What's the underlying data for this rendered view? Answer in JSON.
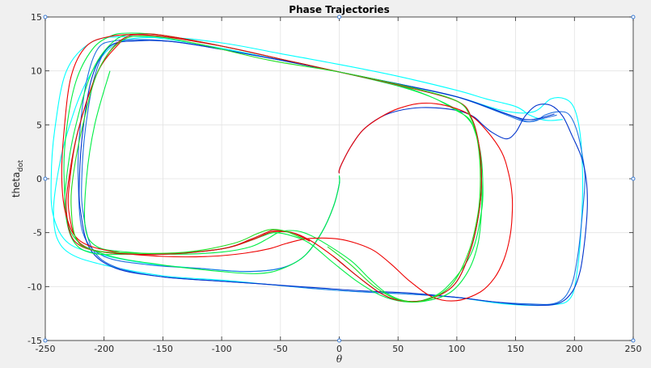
{
  "chart_data": {
    "type": "line",
    "title": "Phase Trajectories",
    "xlabel": "θ",
    "ylabel": "theta",
    "ylabel_subscript": "dot",
    "xlim": [
      -250,
      250
    ],
    "ylim": [
      -15,
      15
    ],
    "xticks": [
      -250,
      -200,
      -150,
      -100,
      -50,
      0,
      50,
      100,
      150,
      200,
      250
    ],
    "yticks": [
      -15,
      -10,
      -5,
      0,
      5,
      10,
      15
    ],
    "xtick_labels": [
      "-250",
      "-200",
      "-150",
      "-100",
      "-50",
      "0",
      "50",
      "100",
      "150",
      "200",
      "250"
    ],
    "ytick_labels": [
      "-15",
      "-10",
      "-5",
      "0",
      "5",
      "10",
      "15"
    ],
    "grid": true,
    "marker_points": [
      [
        -250,
        15
      ],
      [
        0,
        15
      ],
      [
        250,
        15
      ],
      [
        -250,
        0
      ],
      [
        250,
        0
      ],
      [
        -250,
        -15
      ],
      [
        0,
        -15
      ],
      [
        250,
        -15
      ]
    ],
    "series": [
      {
        "color": "#00FFFF",
        "x": [
          0,
          0,
          -5,
          -15,
          -30,
          -50,
          -80,
          -120,
          -160,
          -200,
          -230,
          -243,
          -245,
          -242,
          -232,
          -210,
          -180,
          -150,
          -100,
          -50,
          0,
          50,
          100,
          140,
          165,
          180,
          192,
          200,
          205,
          207,
          206,
          203,
          197,
          180,
          140,
          100,
          60,
          20,
          -20,
          -60,
          -100,
          -150,
          -200,
          -228,
          -240,
          -243,
          -240,
          -232,
          -215,
          -190,
          -150,
          -100,
          -50,
          0,
          50,
          100,
          125,
          150,
          162,
          172,
          180,
          190
        ],
        "y": [
          0.2,
          -0.5,
          -2.6,
          -5,
          -7.2,
          -8.3,
          -8.6,
          -8.3,
          -7.9,
          -7.1,
          -6,
          -3.5,
          0,
          4.5,
          10,
          12.7,
          13.2,
          13,
          12.1,
          11,
          9.9,
          8.8,
          7.6,
          6.3,
          6.2,
          7.4,
          7.4,
          6.5,
          4,
          0,
          -4,
          -8,
          -11,
          -11.7,
          -11.6,
          -11,
          -10.7,
          -10.5,
          -10.2,
          -9.8,
          -9.4,
          -9,
          -8,
          -7,
          -5.5,
          -3,
          0,
          4,
          9,
          12.5,
          13.1,
          12.6,
          11.6,
          10.6,
          9.5,
          8.2,
          7.4,
          6.7,
          5.9,
          5.5,
          5.4,
          5.5
        ]
      },
      {
        "color": "#1E6FE0",
        "x": [
          0,
          0,
          -5,
          -15,
          -30,
          -50,
          -80,
          -120,
          -160,
          -200,
          -218,
          -222,
          -221,
          -215,
          -205,
          -190,
          -165,
          -140,
          -100,
          -50,
          0,
          50,
          100,
          130,
          150,
          160,
          168,
          175,
          185,
          195,
          202,
          207,
          209,
          207,
          203,
          197,
          185,
          160,
          130,
          100,
          60,
          20,
          -20,
          -60,
          -100,
          -150,
          -190,
          -210,
          -218,
          -219,
          -216,
          -208,
          -195,
          -170,
          -140,
          -100,
          -50,
          0,
          50,
          100,
          140,
          158,
          170,
          185
        ],
        "y": [
          0.2,
          -0.5,
          -2.6,
          -5,
          -7.2,
          -8.3,
          -8.6,
          -8.3,
          -8,
          -7.2,
          -5,
          0,
          4,
          9,
          12.1,
          12.8,
          12.9,
          12.7,
          12,
          11,
          9.9,
          8.8,
          7.6,
          6.5,
          5.7,
          5.3,
          5.4,
          5.9,
          6.2,
          6,
          4.5,
          2,
          0,
          -3,
          -7,
          -10,
          -11.5,
          -11.6,
          -11.4,
          -11,
          -10.7,
          -10.5,
          -10.2,
          -9.8,
          -9.5,
          -9.1,
          -8.2,
          -6.5,
          -3,
          0,
          4.5,
          9.5,
          12.3,
          12.8,
          12.7,
          12,
          11,
          9.9,
          8.8,
          7.6,
          6,
          5.3,
          5.5,
          5.9
        ]
      },
      {
        "color": "#0033CC",
        "x": [
          0,
          0,
          3,
          10,
          20,
          35,
          50,
          70,
          90,
          105,
          115,
          122,
          130,
          142,
          150,
          158,
          168,
          180,
          190,
          198,
          206,
          210,
          211,
          209,
          205,
          198,
          185,
          160,
          130,
          100,
          60,
          20,
          -20,
          -60,
          -100,
          -150,
          -190,
          -212,
          -220,
          -221,
          -218,
          -210,
          -195,
          -170,
          -140,
          -100,
          -50,
          0,
          50,
          100,
          140,
          158,
          170,
          183
        ],
        "y": [
          0.5,
          0.8,
          1.6,
          3,
          4.5,
          5.7,
          6.3,
          6.6,
          6.5,
          6.2,
          5.7,
          5,
          4.3,
          3.7,
          4.3,
          5.8,
          6.8,
          6.8,
          5.8,
          4,
          2,
          0,
          -2.5,
          -5.5,
          -8.5,
          -10.5,
          -11.6,
          -11.7,
          -11.4,
          -11,
          -10.6,
          -10.4,
          -10.1,
          -9.8,
          -9.5,
          -9.1,
          -8.3,
          -6.5,
          -3,
          0,
          4.5,
          9.5,
          12.3,
          12.8,
          12.7,
          12,
          11,
          9.9,
          8.8,
          7.6,
          6.1,
          5.5,
          5.6,
          6
        ]
      },
      {
        "color": "#00EE44",
        "x": [
          0,
          0,
          -5,
          -15,
          -30,
          -50,
          -70,
          -100,
          -150,
          -200,
          -228,
          -234,
          -232,
          -224,
          -210,
          -195,
          -180,
          -150,
          -100,
          -50,
          0,
          50,
          90,
          110,
          118,
          121,
          121,
          118,
          110,
          95,
          75,
          55,
          35,
          15,
          -5,
          -25,
          -40,
          -55,
          -65,
          -80,
          -100,
          -140,
          -180,
          -210,
          -226,
          -233,
          -232,
          -225,
          -210,
          -190,
          -170,
          -150,
          -100,
          -50,
          0,
          50,
          80,
          100,
          110,
          115,
          120,
          122,
          121,
          112,
          90,
          70,
          55,
          40,
          25,
          10,
          -15,
          -30,
          -42,
          -52,
          -60,
          -75,
          -100,
          -140,
          -180,
          -206,
          -216,
          -215,
          -208,
          -195
        ],
        "y": [
          0.3,
          -0.5,
          -2.6,
          -5,
          -7.2,
          -8.4,
          -8.8,
          -8.6,
          -8,
          -7,
          -5,
          0,
          4.5,
          9,
          12,
          13.2,
          13.5,
          13.3,
          12.3,
          11.1,
          9.9,
          8.7,
          7,
          5.5,
          3.5,
          0,
          -3,
          -6,
          -8.5,
          -10.5,
          -11.3,
          -11.4,
          -10.8,
          -9.5,
          -7.8,
          -6,
          -5.3,
          -5,
          -5.3,
          -5.9,
          -6.5,
          -6.9,
          -7,
          -6.9,
          -5.8,
          -3,
          0,
          4.5,
          10,
          12.9,
          13.4,
          13.3,
          12.3,
          11.1,
          9.9,
          8.6,
          7.5,
          6.3,
          5.6,
          4.5,
          2.5,
          0,
          -3,
          -7,
          -10.2,
          -11.3,
          -11.3,
          -10.6,
          -9.2,
          -7.6,
          -5.8,
          -5,
          -4.8,
          -5,
          -5.5,
          -6.3,
          -6.8,
          -7,
          -6.8,
          -6.3,
          -4.5,
          0,
          5,
          10
        ]
      },
      {
        "color": "#EE0000",
        "x": [
          0,
          0,
          3,
          10,
          20,
          35,
          50,
          70,
          90,
          110,
          125,
          138,
          144,
          147,
          147,
          145,
          140,
          132,
          120,
          100,
          80,
          60,
          45,
          30,
          15,
          0,
          -15,
          -30,
          -45,
          -60,
          -80,
          -110,
          -150,
          -190,
          -220,
          -232,
          -236,
          -234,
          -228,
          -215,
          -195,
          -170,
          -150,
          -100,
          -50,
          0,
          50,
          100,
          113,
          119,
          121,
          119,
          112,
          98,
          75,
          52,
          35,
          15,
          -5,
          -25,
          -40,
          -55,
          -62,
          -75,
          -100,
          -150,
          -200,
          -222,
          -230,
          -229,
          -222,
          -205,
          -185
        ],
        "y": [
          0.5,
          0.8,
          1.6,
          3,
          4.5,
          5.7,
          6.5,
          7,
          6.8,
          6,
          4.5,
          2.5,
          0.5,
          -1.5,
          -3.5,
          -5.5,
          -7.5,
          -9.2,
          -10.5,
          -11.3,
          -11,
          -9.5,
          -8,
          -6.7,
          -6,
          -5.6,
          -5.5,
          -5.6,
          -6,
          -6.5,
          -6.9,
          -7.2,
          -7.2,
          -6.8,
          -5.8,
          -3.5,
          0,
          4.5,
          9.5,
          12.3,
          13.2,
          13.4,
          13.3,
          12.3,
          11.1,
          9.9,
          8.7,
          7.2,
          5.5,
          3,
          0,
          -3,
          -6.5,
          -9.8,
          -11.2,
          -11.3,
          -10.6,
          -9,
          -7.2,
          -5.7,
          -5,
          -4.9,
          -5.1,
          -5.7,
          -6.5,
          -7,
          -6.8,
          -5.8,
          -3,
          0,
          4.5,
          10,
          12.8
        ]
      },
      {
        "color": "#CC1111",
        "x": [
          -25,
          -40,
          -55,
          -60,
          -75,
          -100,
          -150,
          -200,
          -225,
          -232,
          -230,
          -222,
          -205,
          -185,
          -160,
          -100,
          -50,
          0,
          50,
          100,
          113,
          119,
          121,
          119,
          112,
          98,
          75,
          52,
          35,
          15,
          -5
        ],
        "y": [
          -5.8,
          -5,
          -4.8,
          -4.9,
          -5.6,
          -6.5,
          -7,
          -6.8,
          -5.8,
          -3,
          0,
          4.5,
          10,
          12.9,
          13.3,
          12.3,
          11.1,
          9.9,
          8.7,
          7.2,
          5.5,
          3,
          0,
          -3,
          -6.5,
          -9.8,
          -11.2,
          -11.3,
          -10.6,
          -9,
          -7.2
        ]
      },
      {
        "color": "#22DD22",
        "x": [
          -30,
          -45,
          -58,
          -70,
          -90,
          -130,
          -175,
          -210,
          -224,
          -228,
          -226,
          -218,
          -205,
          -185,
          -160,
          -120,
          -60,
          0,
          60,
          100,
          112,
          118,
          120,
          118,
          110,
          95,
          72,
          50,
          30,
          10,
          -10
        ],
        "y": [
          -5.6,
          -4.9,
          -4.7,
          -5.1,
          -6,
          -6.8,
          -6.9,
          -6.6,
          -5.5,
          -2.5,
          0.5,
          5,
          10,
          12.8,
          13.2,
          12.5,
          11,
          9.9,
          8.5,
          7.2,
          5.6,
          3.2,
          0,
          -3.2,
          -6.8,
          -9.9,
          -11.3,
          -11.2,
          -10,
          -8,
          -6.3
        ]
      }
    ]
  }
}
